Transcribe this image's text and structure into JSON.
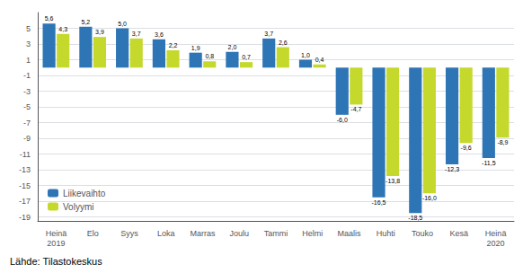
{
  "chart_data": {
    "type": "bar",
    "categories": [
      "Heinä\n2019",
      "Elo",
      "Syys",
      "Loka",
      "Marras",
      "Joulu",
      "Tammi",
      "Helmi",
      "Maalis",
      "Huhti",
      "Touko",
      "Kesä",
      "Heinä\n2020"
    ],
    "series": [
      {
        "name": "Liikevaihto",
        "color": "#2e75b6",
        "values": [
          5.6,
          5.2,
          5.0,
          3.6,
          1.9,
          2.0,
          3.7,
          1.0,
          -6.0,
          -16.5,
          -18.5,
          -12.3,
          -11.5
        ],
        "value_labels": [
          "5,6",
          "5,2",
          "5,0",
          "3,6",
          "1,9",
          "2,0",
          "3,7",
          "1,0",
          "-6,0",
          "-16,5",
          "-18,5",
          "-12,3",
          "-11,5"
        ]
      },
      {
        "name": "Volyymi",
        "color": "#c5d92d",
        "values": [
          4.3,
          3.9,
          3.7,
          2.2,
          0.8,
          0.7,
          2.6,
          0.4,
          -4.7,
          -13.8,
          -16.0,
          -9.6,
          -8.9
        ],
        "value_labels": [
          "4,3",
          "3,9",
          "3,7",
          "2,2",
          "0,8",
          "0,7",
          "2,6",
          "0,4",
          "-4,7",
          "-13,8",
          "-16,0",
          "-9,6",
          "-8,9"
        ]
      }
    ],
    "ylim": [
      -19.5,
      7.0
    ],
    "yticks": [
      -19,
      -17,
      -15,
      -13,
      -11,
      -9,
      -7,
      -5,
      -3,
      -1,
      1,
      3,
      5
    ],
    "grid": true,
    "legend": "lower left",
    "data_labels": true,
    "annotations": [
      "Lähde: Tilastokeskus"
    ]
  }
}
